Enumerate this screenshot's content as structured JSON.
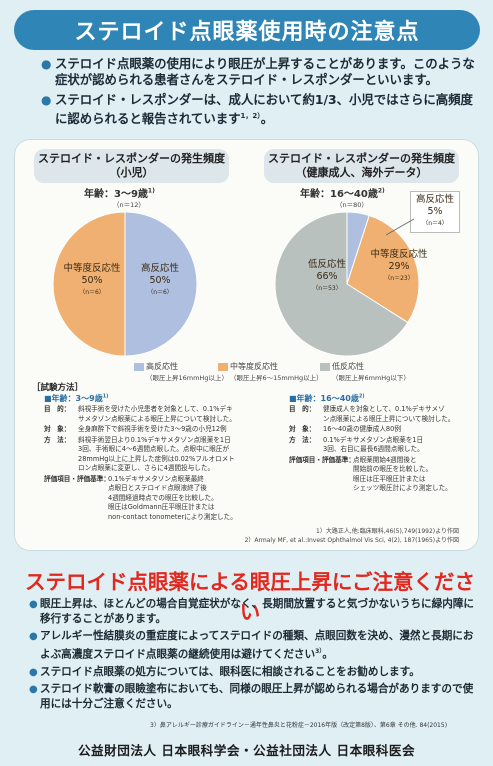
{
  "header": {
    "title": "ステロイド点眼薬使用時の注意点"
  },
  "intro": [
    {
      "text": "ステロイド点眼薬の使用により眼圧が上昇することがあります。このような症状が認められる患者さんをステロイド・レスポンダーといいます。"
    },
    {
      "text": "ステロイド・レスポンダーは、成人において約1/3、小児ではさらに高頻度に認められると報告されています",
      "sup": "1，2）",
      "tail": "。"
    }
  ],
  "left_panel": {
    "title_line1": "ステロイド・レスポンダーの発生頻度",
    "title_line2": "（小児）",
    "age": "年齢：3〜9歳",
    "age_sup": "1)",
    "n_total": "（n＝12）",
    "slices": [
      {
        "name": "中等度反応性",
        "pct": "50%",
        "n": "（n＝6）"
      },
      {
        "name": "高反応性",
        "pct": "50%",
        "n": "（n＝6）"
      }
    ]
  },
  "right_panel": {
    "title_line1": "ステロイド・レスポンダーの発生頻度",
    "title_line2": "（健康成人、海外データ）",
    "age": "年齢：16〜40歳",
    "age_sup": "2)",
    "n_total": "（n＝80）",
    "slices": [
      {
        "name": "低反応性",
        "pct": "66%",
        "n": "（n＝53）"
      },
      {
        "name": "中等度反応性",
        "pct": "29%",
        "n": "（n＝23）"
      },
      {
        "name": "高反応性",
        "pct": "5%",
        "n": "（n＝4）"
      }
    ]
  },
  "chart_data": [
    {
      "type": "pie",
      "title": "ステロイド・レスポンダーの発生頻度（小児）",
      "subtitle": "年齢：3〜9歳（n＝12）",
      "categories": [
        "中等度反応性",
        "高反応性"
      ],
      "values": [
        50,
        50
      ],
      "counts": [
        6,
        6
      ]
    },
    {
      "type": "pie",
      "title": "ステロイド・レスポンダーの発生頻度（健康成人、海外データ）",
      "subtitle": "年齢：16〜40歳（n＝80）",
      "categories": [
        "低反応性",
        "中等度反応性",
        "高反応性"
      ],
      "values": [
        66,
        29,
        5
      ],
      "counts": [
        53,
        23,
        4
      ]
    }
  ],
  "legend": [
    {
      "label": "高反応性",
      "sub": "（眼圧上昇16mmHg以上）",
      "color": "#aebfe0"
    },
    {
      "label": "中等度反応性",
      "sub": "（眼圧上昇6〜15mmHg以上）",
      "color": "#efb071"
    },
    {
      "label": "低反応性",
      "sub": "（眼圧上昇6mmHg以下）",
      "color": "#b9c1be"
    }
  ],
  "methods": {
    "title": "［試験方法］",
    "left": {
      "age": "■年齢：3〜9歳",
      "age_sup": "1)",
      "rows": [
        {
          "k": "目　的：",
          "v": "斜視手術を受けた小児患者を対象として、0.1%デキ\nサメタゾン点眼薬による眼圧上昇について検討した。"
        },
        {
          "k": "対　象：",
          "v": "全身麻酔下で斜視手術を受けた3〜9歳の小児12例"
        },
        {
          "k": "方　法：",
          "v": "斜視手術翌日より0.1%デキサメタゾン点眼薬を1日\n3回、手術眼に4〜6週間点眼した。点眼中に眼圧が\n28mmHg以上に上昇した症例は0.02%フルオロメト\nロン点眼薬に変更し、さらに4週間投与した。"
        },
        {
          "k": "評価項目・評価基準：",
          "v": "0.1%デキサメタゾン点眼薬最終\n点眼日とステロイド点眼液終了後\n4週間経過時点での眼圧を比較した。\n眼圧はGoldmann圧平眼圧計または\nnon-contact tonometerにより測定した。"
        }
      ]
    },
    "right": {
      "age": "■年齢：16〜40歳",
      "age_sup": "2)",
      "rows": [
        {
          "k": "目　的：",
          "v": "健康成人を対象として、0.1%デキサメゾ\nン点眼薬による眼圧上昇について検討した。"
        },
        {
          "k": "対　象：",
          "v": "16〜40歳の健康成人80例"
        },
        {
          "k": "方　法：",
          "v": "0.1%デキサメタゾン点眼薬を1日\n3回、右目に最長6週間点眼した。"
        },
        {
          "k": "評価項目・評価基準：",
          "v": "点眼薬開始4週間後と\n開始前の眼圧を比較した。\n眼圧は圧平眼圧計または\nシェッツ眼圧計により測定した。"
        }
      ]
    },
    "refs": [
      "1）大路正人,他:臨床眼科,46(5),749(1992)より作図",
      "2）Armaly MF, et al.:Invest Ophthalmol Vis Sci, 4(2), 187(1965)より作図"
    ]
  },
  "warning": {
    "title": "ステロイド点眼薬による眼圧上昇にご注意ください",
    "items": [
      {
        "text": "眼圧上昇は、ほとんどの場合自覚症状がなく、長期間放置すると気づかないうちに緑内障に移行することがあります。"
      },
      {
        "text": "アレルギー性結膜炎の重症度によってステロイドの種類、点眼回数を決め、漫然と長期におよぶ高濃度ステロイド点眼薬の継続使用は避けてください",
        "sup": "3）",
        "tail": "。"
      },
      {
        "text": "ステロイド点眼薬の処方については、眼科医に相談されることをお勧めします。"
      },
      {
        "text": "ステロイド軟膏の眼瞼塗布においても、同様の眼圧上昇が認められる場合がありますので使用には十分ご注意ください。"
      }
    ],
    "ref3": "3）鼻アレルギー診療ガイドライン－通年性鼻炎と花粉症－2016年版（改定第8版）、第6章 その他. 84(2015)"
  },
  "footer": {
    "text": "公益財団法人 日本眼科学会・公益社団法人 日本眼科医会"
  }
}
